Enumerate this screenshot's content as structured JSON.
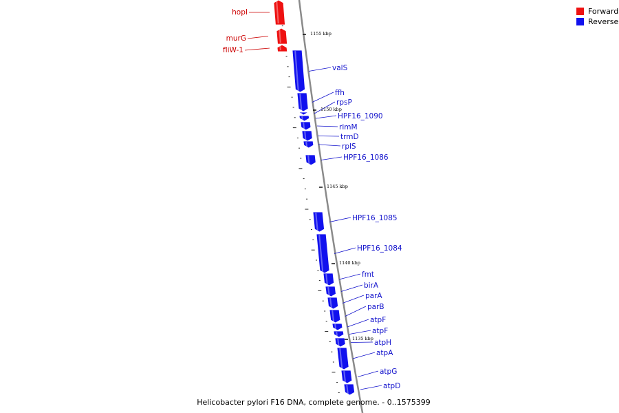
{
  "genome": {
    "title": "Helicobacter pylori F16 DNA, complete genome. - 0..1575399"
  },
  "legend": {
    "forward": {
      "label": "Forward",
      "color": "#ee1111"
    },
    "reverse": {
      "label": "Reverse",
      "color": "#1111ee"
    }
  },
  "scale_markers": [
    {
      "label": "1155 kbp"
    },
    {
      "label": "1150 kbp"
    },
    {
      "label": "1145 kbp"
    },
    {
      "label": "1140 kbp"
    },
    {
      "label": "1135 kbp"
    }
  ],
  "genes": [
    {
      "name": "hopI",
      "strand": "forward"
    },
    {
      "name": "murG",
      "strand": "forward"
    },
    {
      "name": "fliW-1",
      "strand": "forward"
    },
    {
      "name": "valS",
      "strand": "reverse"
    },
    {
      "name": "ffh",
      "strand": "reverse"
    },
    {
      "name": "rpsP",
      "strand": "reverse"
    },
    {
      "name": "HPF16_1090",
      "strand": "reverse"
    },
    {
      "name": "rimM",
      "strand": "reverse"
    },
    {
      "name": "trmD",
      "strand": "reverse"
    },
    {
      "name": "rplS",
      "strand": "reverse"
    },
    {
      "name": "HPF16_1086",
      "strand": "reverse"
    },
    {
      "name": "HPF16_1085",
      "strand": "reverse"
    },
    {
      "name": "HPF16_1084",
      "strand": "reverse"
    },
    {
      "name": "fmt",
      "strand": "reverse"
    },
    {
      "name": "birA",
      "strand": "reverse"
    },
    {
      "name": "parA",
      "strand": "reverse"
    },
    {
      "name": "parB",
      "strand": "reverse"
    },
    {
      "name": "atpF",
      "strand": "reverse"
    },
    {
      "name": "atpF",
      "strand": "reverse"
    },
    {
      "name": "atpH",
      "strand": "reverse"
    },
    {
      "name": "atpA",
      "strand": "reverse"
    },
    {
      "name": "atpG",
      "strand": "reverse"
    },
    {
      "name": "atpD",
      "strand": "reverse"
    }
  ]
}
